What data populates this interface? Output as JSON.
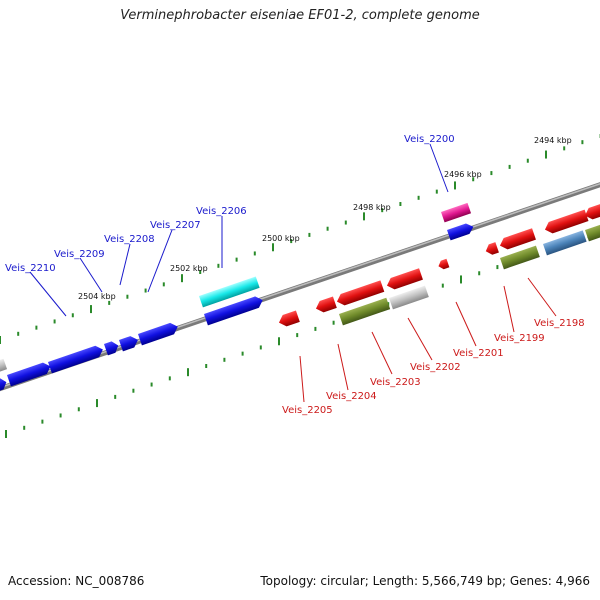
{
  "title": "Verminephrobacter eiseniae EF01-2, complete genome",
  "footer": {
    "accession": "Accession: NC_008786",
    "topology": "Topology: circular; Length: 5,566,749 bp; Genes: 4,966"
  },
  "kbp_labels": [
    "2494 kbp",
    "2496 kbp",
    "2498 kbp",
    "2500 kbp",
    "2502 kbp",
    "2504 kbp"
  ],
  "top_genes": [
    "Veis_2200",
    "Veis_2206",
    "Veis_2207",
    "Veis_2208",
    "Veis_2209",
    "Veis_2210"
  ],
  "bottom_genes": [
    "Veis_2198",
    "Veis_2199",
    "Veis_2201",
    "Veis_2202",
    "Veis_2203",
    "Veis_2204",
    "Veis_2205"
  ],
  "colors": {
    "backbone": "#8c8c8c",
    "ticks": "#2a8a2a",
    "forward_gene": "#1010e0",
    "reverse_gene": "#e01010",
    "cyan_gene": "#18e8e8",
    "magenta_gene": "#e01890",
    "olive_gene": "#6f8a2a",
    "steel_gene": "#4a82b8",
    "gray_gene": "#c0c0c0"
  }
}
